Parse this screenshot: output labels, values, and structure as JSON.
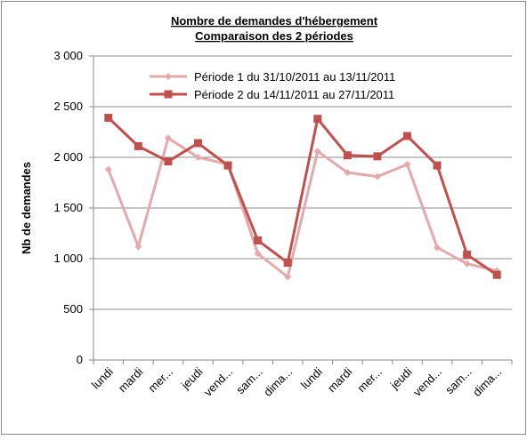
{
  "chart_data": {
    "type": "line",
    "title": "Nombre de demandes d'hébergement",
    "subtitle": "Comparaison des 2 périodes",
    "y_label": "Nb de demandes",
    "categories": [
      "lundi",
      "mardi",
      "mer...",
      "jeudi",
      "vend...",
      "sam...",
      "dima...",
      "lundi",
      "mardi",
      "mer...",
      "jeudi",
      "vend...",
      "sam...",
      "dima..."
    ],
    "series": [
      {
        "name": "Période 1 du 31/10/2011 au 13/11/2011",
        "color": "#e6a9ab",
        "marker": "diamond",
        "values": [
          1880,
          1120,
          2190,
          2000,
          1930,
          1050,
          820,
          2060,
          1850,
          1810,
          1930,
          1110,
          950,
          880
        ]
      },
      {
        "name": "Période 2 du 14/11/2011 au 27/11/2011",
        "color": "#c0504d",
        "marker": "square",
        "values": [
          2390,
          2110,
          1960,
          2140,
          1920,
          1180,
          960,
          2380,
          2020,
          2010,
          2210,
          1920,
          1040,
          840
        ]
      }
    ],
    "ylim": [
      0,
      3000
    ],
    "yticks": [
      0,
      500,
      {
        "value": 1000,
        "label": "1 000"
      },
      {
        "value": 1500,
        "label": "1 500"
      },
      {
        "value": 2000,
        "label": "2 000"
      },
      {
        "value": 2500,
        "label": "2 500"
      },
      {
        "value": 3000,
        "label": "3 000"
      }
    ],
    "grid": true
  }
}
